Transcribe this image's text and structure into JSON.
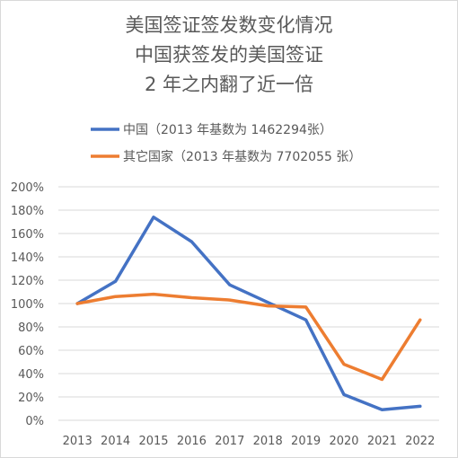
{
  "chart_data": {
    "type": "line",
    "title_lines": [
      "美国签证签发数变化情况",
      "中国获签发的美国签证",
      "2 年之内翻了近一倍"
    ],
    "x": [
      "2013",
      "2014",
      "2015",
      "2016",
      "2017",
      "2018",
      "2019",
      "2020",
      "2021",
      "2022"
    ],
    "ylim": [
      0,
      200
    ],
    "y_ticks": [
      "0%",
      "20%",
      "40%",
      "60%",
      "80%",
      "100%",
      "120%",
      "140%",
      "160%",
      "180%",
      "200%"
    ],
    "y_unit": "%",
    "grid": true,
    "legend_position": "top-left",
    "series": [
      {
        "name": "中国（2013 年基数为 1462294张）",
        "color": "#4472c4",
        "values": [
          100,
          119,
          174,
          153,
          116,
          101,
          86,
          22,
          9,
          12
        ]
      },
      {
        "name": "其它国家（2013 年基数为 7702055 张）",
        "color": "#ed7d31",
        "values": [
          100,
          106,
          108,
          105,
          103,
          98,
          97,
          48,
          35,
          86
        ]
      }
    ]
  }
}
